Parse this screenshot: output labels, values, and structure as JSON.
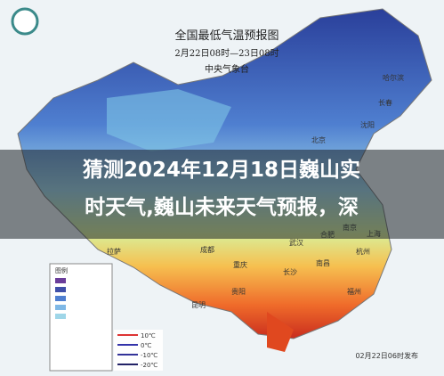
{
  "map": {
    "title": "全国最低气温预报图",
    "period": "2月22日08时—23日08时",
    "issuer": "中央气象台",
    "cities": [
      "哈尔滨",
      "长春",
      "沈阳",
      "北京",
      "拉萨",
      "成都",
      "重庆",
      "贵阳",
      "昆明",
      "长沙",
      "南昌",
      "合肥",
      "南京",
      "上海",
      "杭州",
      "武汉",
      "福州"
    ],
    "legend": {
      "title": "图例",
      "items": [
        "10℃",
        "0℃",
        "-10℃",
        "-20℃"
      ]
    },
    "published": "02月22日06时发布"
  },
  "overlay": {
    "lines": [
      "猜测2024年12月18日巍山实",
      "时天气,巍山未来天气预报，深"
    ]
  }
}
